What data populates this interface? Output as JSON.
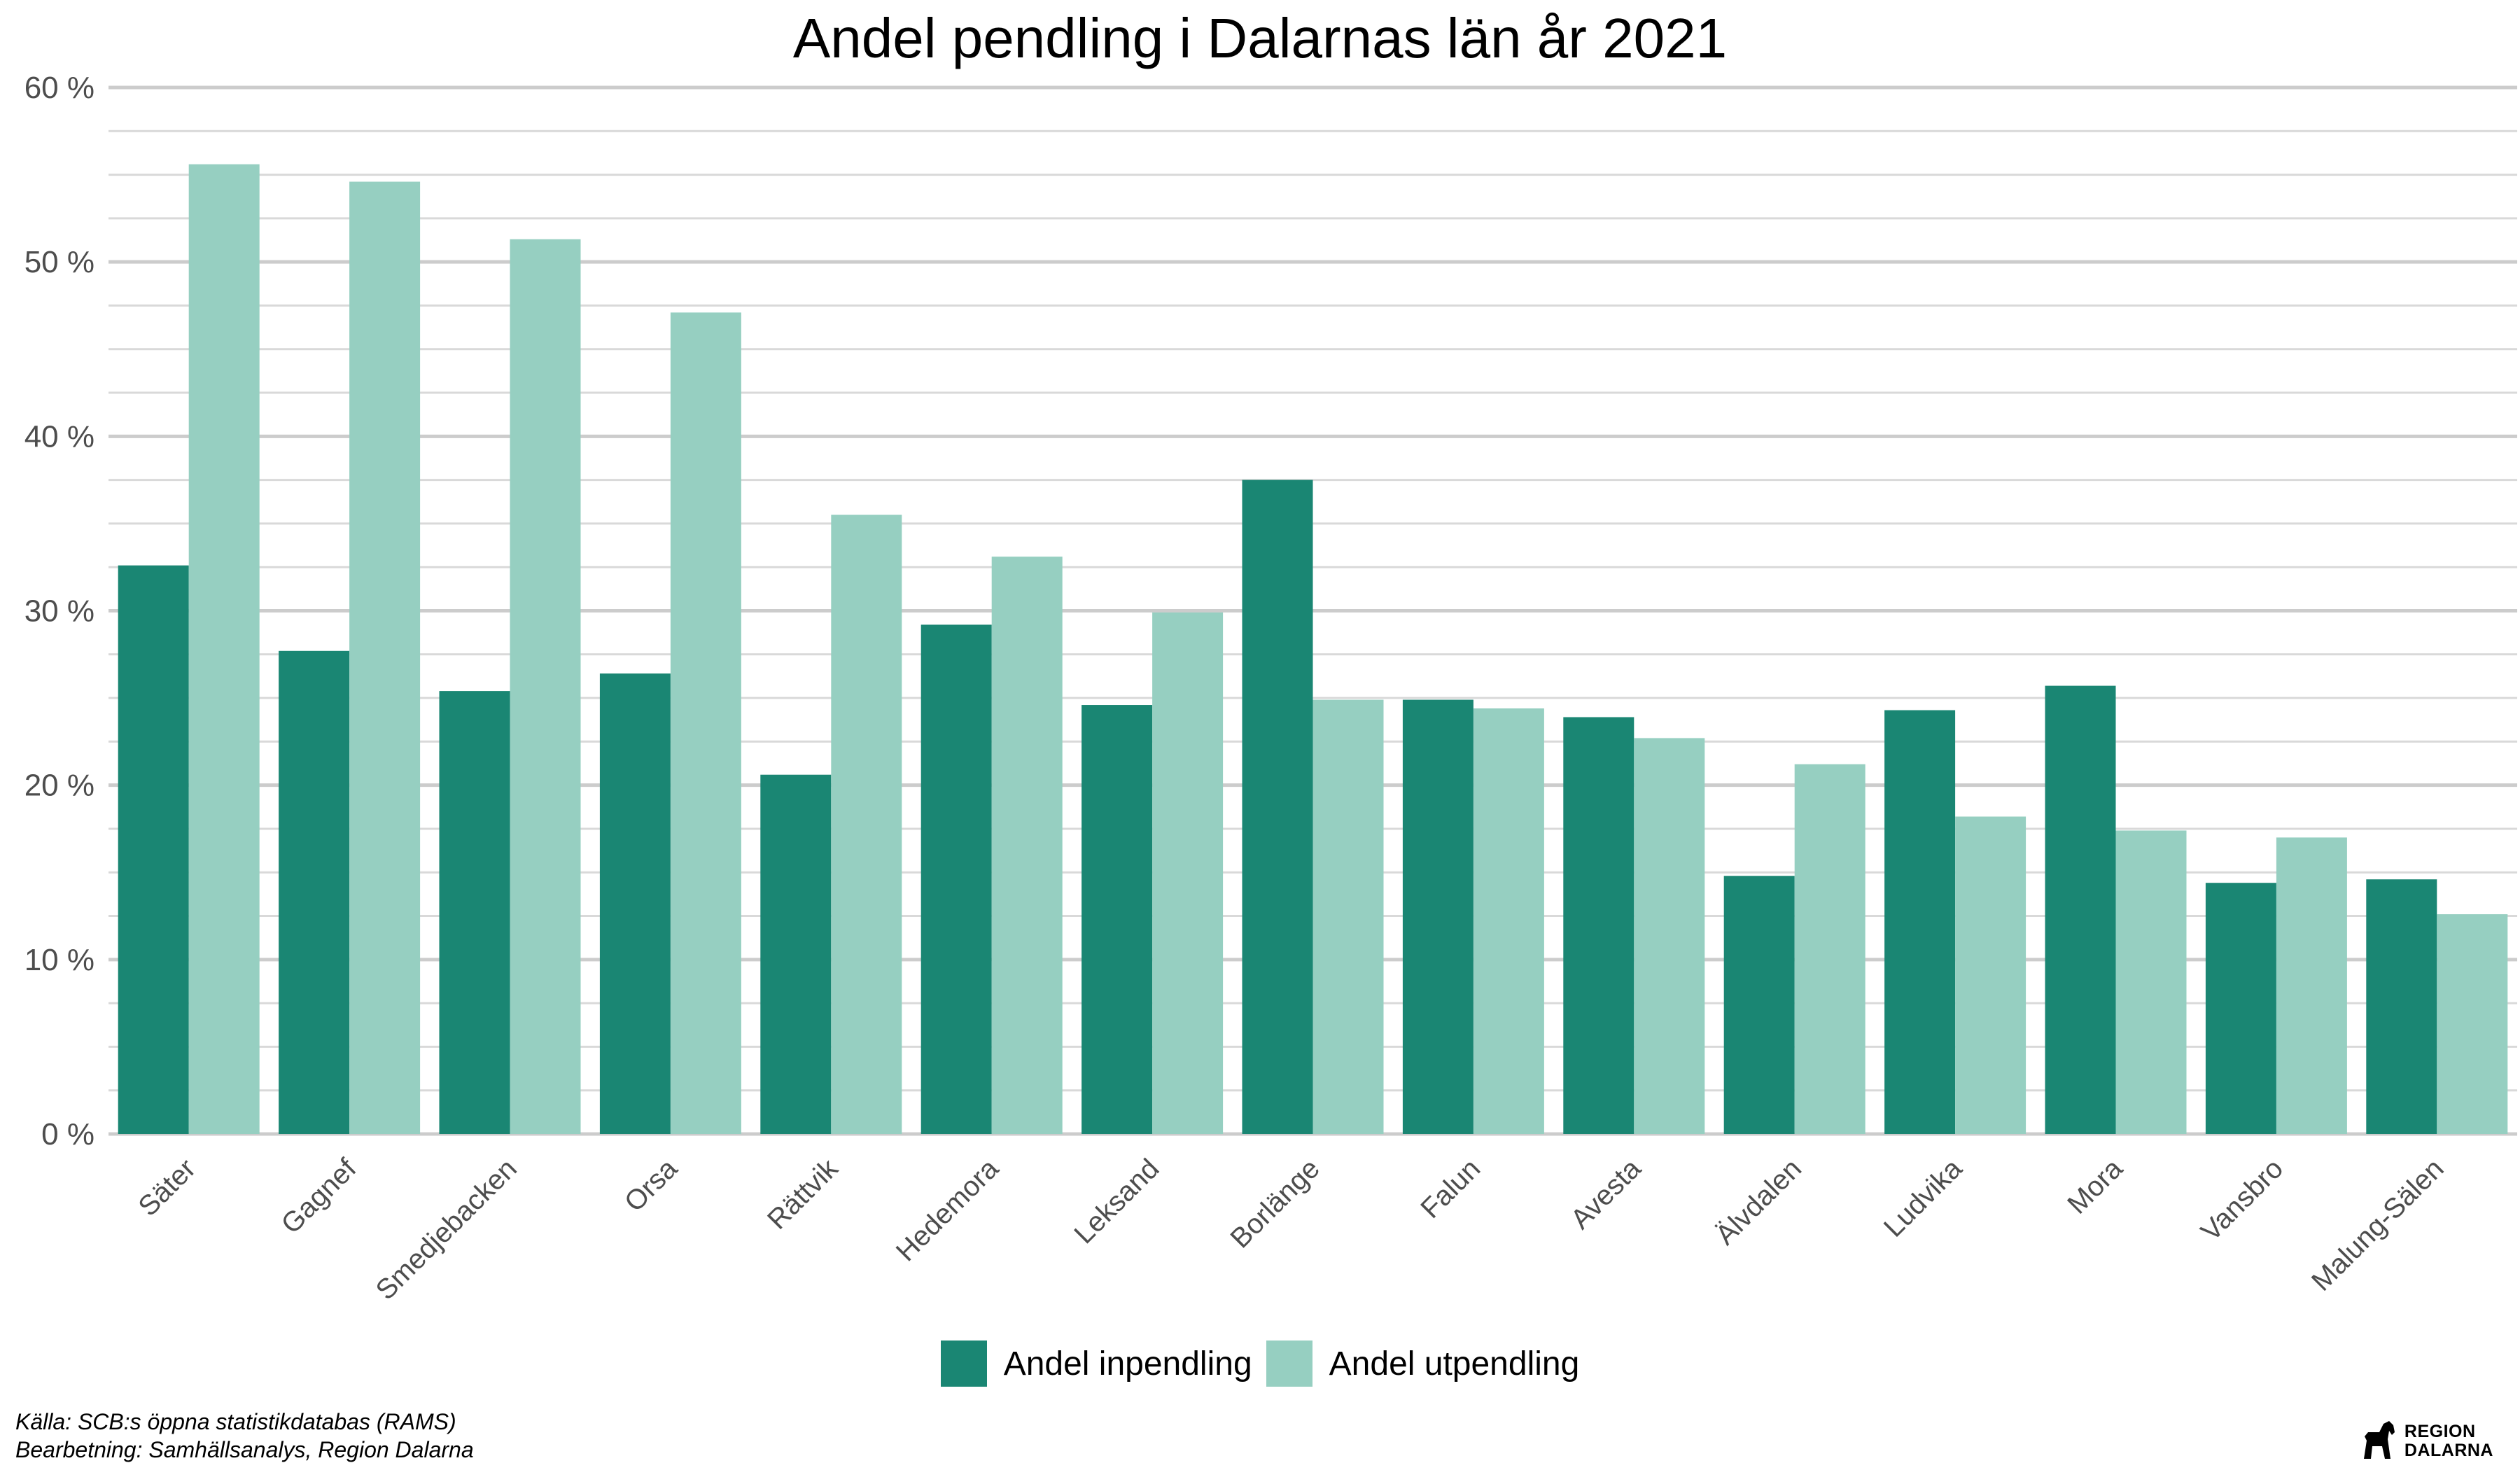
{
  "chart_data": {
    "type": "bar",
    "title": "Andel pendling i Dalarnas län år 2021",
    "xlabel": "",
    "ylabel": "",
    "ylim": [
      0,
      60
    ],
    "yticks": [
      "0 %",
      "10 %",
      "20 %",
      "30 %",
      "40 %",
      "50 %",
      "60 %"
    ],
    "categories": [
      "Säter",
      "Gagnef",
      "Smedjebacken",
      "Orsa",
      "Rättvik",
      "Hedemora",
      "Leksand",
      "Borlänge",
      "Falun",
      "Avesta",
      "Älvdalen",
      "Ludvika",
      "Mora",
      "Vansbro",
      "Malung-Sälen"
    ],
    "series": [
      {
        "name": "Andel inpendling",
        "color": "#1a8673",
        "values": [
          32.6,
          27.7,
          25.4,
          26.4,
          20.6,
          29.2,
          24.6,
          37.5,
          24.9,
          23.9,
          14.8,
          24.3,
          25.7,
          14.4,
          14.6
        ]
      },
      {
        "name": "Andel utpendling",
        "color": "#96cfc1",
        "values": [
          55.6,
          54.6,
          51.3,
          47.1,
          35.5,
          33.1,
          29.9,
          24.9,
          24.4,
          22.7,
          21.2,
          18.2,
          17.4,
          17.0,
          12.6
        ]
      }
    ],
    "grid": true,
    "legend_position": "bottom"
  },
  "caption": {
    "source": "Källa: SCB:s öppna statistikdatabas (RAMS)",
    "processing": "Bearbetning: Samhällsanalys, Region Dalarna"
  },
  "logo": {
    "line1": "REGION",
    "line2": "DALARNA",
    "icon": "dala-horse-icon"
  }
}
